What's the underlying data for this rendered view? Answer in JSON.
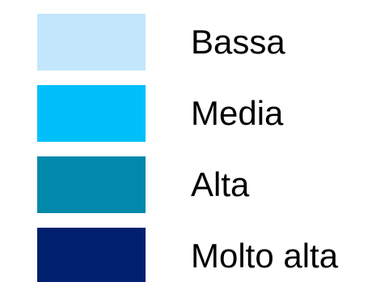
{
  "legend": {
    "items": [
      {
        "label": "Bassa",
        "color": "#c3e6fd"
      },
      {
        "label": "Media",
        "color": "#00c0fb"
      },
      {
        "label": "Alta",
        "color": "#0089aa"
      },
      {
        "label": "Molto alta",
        "color": "#00206f"
      }
    ]
  }
}
